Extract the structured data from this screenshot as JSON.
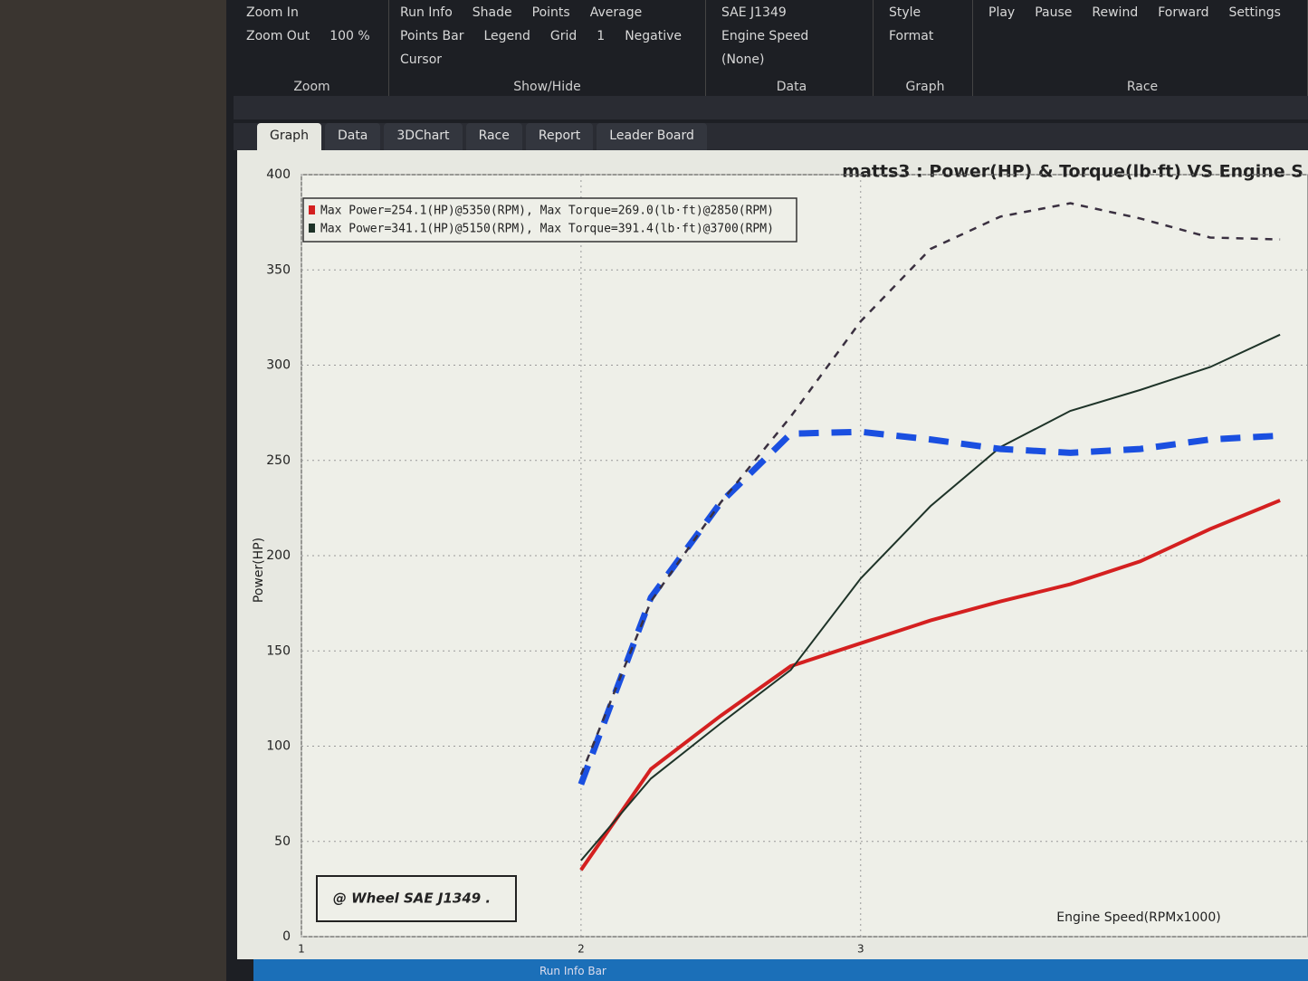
{
  "ribbon": [
    {
      "label": "Zoom",
      "items": [
        "Zoom In",
        "Zoom Out",
        "100 %"
      ]
    },
    {
      "label": "Show/Hide",
      "items": [
        "Run Info",
        "Shade",
        "Points",
        "Average",
        "Points Bar",
        "Legend",
        "Grid",
        "1",
        "Negative",
        "Cursor"
      ]
    },
    {
      "label": "Data",
      "items": [
        "SAE J1349",
        "Engine Speed",
        "(None)"
      ]
    },
    {
      "label": "Graph",
      "items": [
        "Style",
        "Format"
      ]
    },
    {
      "label": "Race",
      "items": [
        "Play",
        "Pause",
        "Rewind",
        "Forward",
        "Settings"
      ]
    }
  ],
  "tabs": [
    "Graph",
    "Data",
    "3DChart",
    "Race",
    "Report",
    "Leader Board"
  ],
  "status_bar": "Run Info Bar",
  "chart_data": {
    "type": "line",
    "title": "matts3 : Power(HP) & Torque(lb·ft) VS Engine S",
    "x_label": "Engine Speed(RPMx1000)",
    "y_label": "Power(HP)",
    "annotation": "@ Wheel SAE J1349 .",
    "x": [
      2,
      2.25,
      2.5,
      2.75,
      3,
      3.25,
      3.5,
      3.75,
      4,
      4.25,
      4.5
    ],
    "xlim": [
      1,
      4.6
    ],
    "xticks": [
      1,
      2,
      3
    ],
    "ylim": [
      0,
      400
    ],
    "yticks": [
      0,
      50,
      100,
      150,
      200,
      250,
      300,
      350,
      400
    ],
    "grid": true,
    "legend": "top-left",
    "series": [
      {
        "name": "Max Power=254.1(HP)@5350(RPM), Max Torque=269.0(lb·ft)@2850(RPM)",
        "color": "#d42020",
        "style": "solid",
        "values": [
          35,
          88,
          116,
          142,
          154,
          166,
          176,
          185,
          197,
          214,
          229
        ]
      },
      {
        "name": "Max Power=341.1(HP)@5150(RPM), Max Torque=391.4(lb·ft)@3700(RPM)",
        "color": "#1e3328",
        "style": "solid",
        "values": [
          40,
          83,
          112,
          140,
          188,
          226,
          257,
          276,
          287,
          299,
          316
        ]
      },
      {
        "color": "#1a4fe0",
        "style": "dashed",
        "values": [
          80,
          178,
          228,
          264,
          265,
          261,
          256,
          254,
          256,
          261,
          263
        ]
      },
      {
        "color": "#3a3040",
        "style": "dotted",
        "values": [
          85,
          176,
          228,
          273,
          323,
          361,
          378,
          385,
          377,
          367,
          366
        ]
      }
    ]
  }
}
